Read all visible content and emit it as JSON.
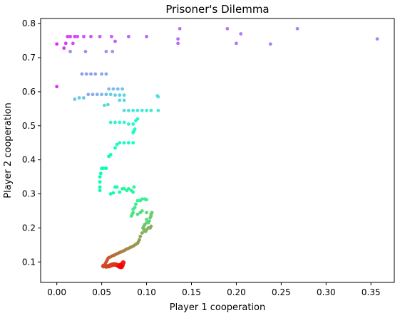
{
  "chart_data": {
    "type": "scatter",
    "title": "Prisoner's Dilemma",
    "xlabel": "Player 1 cooperation",
    "ylabel": "Player 2 cooperation",
    "xlim": [
      -0.018,
      0.376
    ],
    "ylim": [
      0.04,
      0.815
    ],
    "xticks": [
      0.0,
      0.05,
      0.1,
      0.15,
      0.2,
      0.25,
      0.3,
      0.35
    ],
    "xtick_labels": [
      "0.00",
      "0.05",
      "0.10",
      "0.15",
      "0.20",
      "0.25",
      "0.30",
      "0.35"
    ],
    "yticks": [
      0.1,
      0.2,
      0.3,
      0.4,
      0.5,
      0.6,
      0.7,
      0.8
    ],
    "ytick_labels": [
      "0.1",
      "0.2",
      "0.3",
      "0.4",
      "0.5",
      "0.6",
      "0.7",
      "0.8"
    ],
    "grid": false,
    "colormap": "rainbow",
    "color_encoding": "point order from violet (first) to red (last)",
    "points": [
      [
        0.0,
        0.74
      ],
      [
        0.0,
        0.615
      ],
      [
        0.008,
        0.728
      ],
      [
        0.01,
        0.742
      ],
      [
        0.012,
        0.762
      ],
      [
        0.015,
        0.762
      ],
      [
        0.02,
        0.762
      ],
      [
        0.018,
        0.742
      ],
      [
        0.023,
        0.762
      ],
      [
        0.03,
        0.762
      ],
      [
        0.038,
        0.762
      ],
      [
        0.048,
        0.762
      ],
      [
        0.061,
        0.762
      ],
      [
        0.065,
        0.748
      ],
      [
        0.08,
        0.762
      ],
      [
        0.1,
        0.762
      ],
      [
        0.135,
        0.755
      ],
      [
        0.135,
        0.742
      ],
      [
        0.137,
        0.785
      ],
      [
        0.19,
        0.785
      ],
      [
        0.2,
        0.742
      ],
      [
        0.205,
        0.77
      ],
      [
        0.238,
        0.74
      ],
      [
        0.268,
        0.785
      ],
      [
        0.357,
        0.755
      ],
      [
        0.015,
        0.718
      ],
      [
        0.032,
        0.718
      ],
      [
        0.055,
        0.718
      ],
      [
        0.062,
        0.718
      ],
      [
        0.028,
        0.652
      ],
      [
        0.033,
        0.652
      ],
      [
        0.038,
        0.652
      ],
      [
        0.043,
        0.652
      ],
      [
        0.05,
        0.652
      ],
      [
        0.055,
        0.652
      ],
      [
        0.035,
        0.592
      ],
      [
        0.04,
        0.592
      ],
      [
        0.045,
        0.592
      ],
      [
        0.05,
        0.592
      ],
      [
        0.055,
        0.592
      ],
      [
        0.058,
        0.608
      ],
      [
        0.063,
        0.608
      ],
      [
        0.068,
        0.608
      ],
      [
        0.073,
        0.608
      ],
      [
        0.02,
        0.578
      ],
      [
        0.025,
        0.582
      ],
      [
        0.03,
        0.582
      ],
      [
        0.06,
        0.592
      ],
      [
        0.065,
        0.59
      ],
      [
        0.07,
        0.59
      ],
      [
        0.075,
        0.59
      ],
      [
        0.053,
        0.56
      ],
      [
        0.057,
        0.562
      ],
      [
        0.07,
        0.575
      ],
      [
        0.075,
        0.575
      ],
      [
        0.112,
        0.588
      ],
      [
        0.113,
        0.585
      ],
      [
        0.075,
        0.545
      ],
      [
        0.08,
        0.545
      ],
      [
        0.085,
        0.545
      ],
      [
        0.09,
        0.545
      ],
      [
        0.095,
        0.545
      ],
      [
        0.1,
        0.545
      ],
      [
        0.105,
        0.545
      ],
      [
        0.113,
        0.545
      ],
      [
        0.06,
        0.51
      ],
      [
        0.065,
        0.51
      ],
      [
        0.07,
        0.51
      ],
      [
        0.075,
        0.51
      ],
      [
        0.08,
        0.505
      ],
      [
        0.085,
        0.505
      ],
      [
        0.088,
        0.515
      ],
      [
        0.09,
        0.52
      ],
      [
        0.087,
        0.49
      ],
      [
        0.086,
        0.485
      ],
      [
        0.085,
        0.48
      ],
      [
        0.067,
        0.445
      ],
      [
        0.07,
        0.45
      ],
      [
        0.075,
        0.45
      ],
      [
        0.08,
        0.45
      ],
      [
        0.085,
        0.45
      ],
      [
        0.065,
        0.435
      ],
      [
        0.06,
        0.415
      ],
      [
        0.058,
        0.41
      ],
      [
        0.05,
        0.375
      ],
      [
        0.052,
        0.375
      ],
      [
        0.055,
        0.375
      ],
      [
        0.049,
        0.36
      ],
      [
        0.048,
        0.35
      ],
      [
        0.048,
        0.335
      ],
      [
        0.048,
        0.32
      ],
      [
        0.048,
        0.31
      ],
      [
        0.06,
        0.3
      ],
      [
        0.063,
        0.303
      ],
      [
        0.065,
        0.32
      ],
      [
        0.067,
        0.32
      ],
      [
        0.07,
        0.305
      ],
      [
        0.073,
        0.315
      ],
      [
        0.075,
        0.315
      ],
      [
        0.078,
        0.31
      ],
      [
        0.08,
        0.315
      ],
      [
        0.083,
        0.31
      ],
      [
        0.085,
        0.305
      ],
      [
        0.086,
        0.32
      ],
      [
        0.09,
        0.28
      ],
      [
        0.093,
        0.28
      ],
      [
        0.095,
        0.285
      ],
      [
        0.098,
        0.285
      ],
      [
        0.1,
        0.283
      ],
      [
        0.088,
        0.27
      ],
      [
        0.087,
        0.26
      ],
      [
        0.085,
        0.255
      ],
      [
        0.085,
        0.245
      ],
      [
        0.084,
        0.24
      ],
      [
        0.083,
        0.235
      ],
      [
        0.09,
        0.24
      ],
      [
        0.093,
        0.245
      ],
      [
        0.095,
        0.25
      ],
      [
        0.1,
        0.245
      ],
      [
        0.1,
        0.225
      ],
      [
        0.1,
        0.215
      ],
      [
        0.102,
        0.215
      ],
      [
        0.103,
        0.22
      ],
      [
        0.104,
        0.23
      ],
      [
        0.105,
        0.235
      ],
      [
        0.105,
        0.24
      ],
      [
        0.106,
        0.245
      ],
      [
        0.098,
        0.21
      ],
      [
        0.097,
        0.205
      ],
      [
        0.096,
        0.2
      ],
      [
        0.097,
        0.195
      ],
      [
        0.098,
        0.19
      ],
      [
        0.099,
        0.19
      ],
      [
        0.1,
        0.195
      ],
      [
        0.102,
        0.2
      ],
      [
        0.104,
        0.2
      ],
      [
        0.105,
        0.205
      ],
      [
        0.095,
        0.185
      ],
      [
        0.093,
        0.175
      ],
      [
        0.092,
        0.165
      ],
      [
        0.091,
        0.16
      ],
      [
        0.09,
        0.155
      ],
      [
        0.088,
        0.152
      ],
      [
        0.086,
        0.148
      ],
      [
        0.084,
        0.145
      ],
      [
        0.082,
        0.143
      ],
      [
        0.08,
        0.14
      ],
      [
        0.078,
        0.138
      ],
      [
        0.076,
        0.135
      ],
      [
        0.074,
        0.132
      ],
      [
        0.072,
        0.13
      ],
      [
        0.07,
        0.128
      ],
      [
        0.068,
        0.125
      ],
      [
        0.066,
        0.123
      ],
      [
        0.064,
        0.12
      ],
      [
        0.062,
        0.118
      ],
      [
        0.06,
        0.115
      ],
      [
        0.058,
        0.113
      ],
      [
        0.057,
        0.11
      ],
      [
        0.056,
        0.105
      ],
      [
        0.055,
        0.1
      ],
      [
        0.054,
        0.095
      ],
      [
        0.053,
        0.09
      ],
      [
        0.052,
        0.088
      ],
      [
        0.055,
        0.087
      ],
      [
        0.058,
        0.088
      ],
      [
        0.06,
        0.09
      ],
      [
        0.062,
        0.092
      ],
      [
        0.064,
        0.093
      ],
      [
        0.066,
        0.092
      ],
      [
        0.068,
        0.09
      ],
      [
        0.07,
        0.09
      ],
      [
        0.072,
        0.092
      ],
      [
        0.073,
        0.095
      ],
      [
        0.074,
        0.098
      ],
      [
        0.073,
        0.09
      ],
      [
        0.072,
        0.088
      ],
      [
        0.071,
        0.086
      ],
      [
        0.07,
        0.087
      ],
      [
        0.069,
        0.088
      ],
      [
        0.071,
        0.09
      ],
      [
        0.072,
        0.086
      ]
    ]
  }
}
